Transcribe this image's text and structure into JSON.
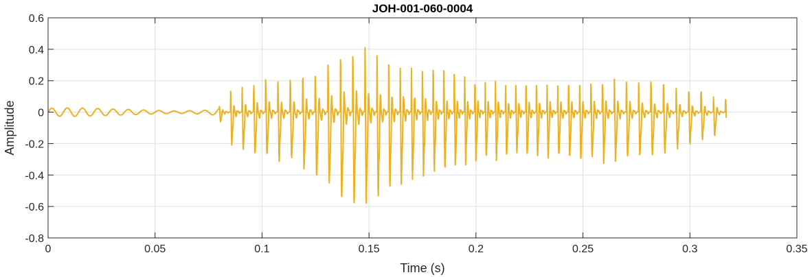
{
  "chart_data": {
    "type": "line",
    "title": "JOH-001-060-0004",
    "xlabel": "Time (s)",
    "ylabel": "Amplitude",
    "xlim": [
      0,
      0.35
    ],
    "ylim": [
      -0.8,
      0.6
    ],
    "xticks": [
      0,
      0.05,
      0.1,
      0.15,
      0.2,
      0.25,
      0.3,
      0.35
    ],
    "xtick_labels": [
      "0",
      "0.05",
      "0.1",
      "0.15",
      "0.2",
      "0.25",
      "0.3",
      "0.35"
    ],
    "yticks": [
      -0.8,
      -0.6,
      -0.4,
      -0.2,
      0,
      0.2,
      0.4,
      0.6
    ],
    "ytick_labels": [
      "-0.8",
      "-0.6",
      "-0.4",
      "-0.2",
      "0",
      "0.2",
      "0.4",
      "0.6"
    ],
    "grid": true,
    "line_color": "#EDB120",
    "signal": {
      "duration": 0.317,
      "envelope": [
        [
          0.0,
          0.03
        ],
        [
          0.01,
          0.03
        ],
        [
          0.03,
          0.02
        ],
        [
          0.06,
          0.01
        ],
        [
          0.075,
          0.02
        ],
        [
          0.082,
          0.05
        ],
        [
          0.086,
          0.15
        ],
        [
          0.1,
          0.2
        ],
        [
          0.115,
          0.22
        ],
        [
          0.125,
          0.28
        ],
        [
          0.14,
          0.42
        ],
        [
          0.145,
          0.42
        ],
        [
          0.16,
          0.34
        ],
        [
          0.175,
          0.28
        ],
        [
          0.19,
          0.24
        ],
        [
          0.2,
          0.22
        ],
        [
          0.22,
          0.2
        ],
        [
          0.24,
          0.2
        ],
        [
          0.26,
          0.22
        ],
        [
          0.27,
          0.22
        ],
        [
          0.29,
          0.18
        ],
        [
          0.305,
          0.13
        ],
        [
          0.317,
          0.08
        ]
      ]
    }
  }
}
